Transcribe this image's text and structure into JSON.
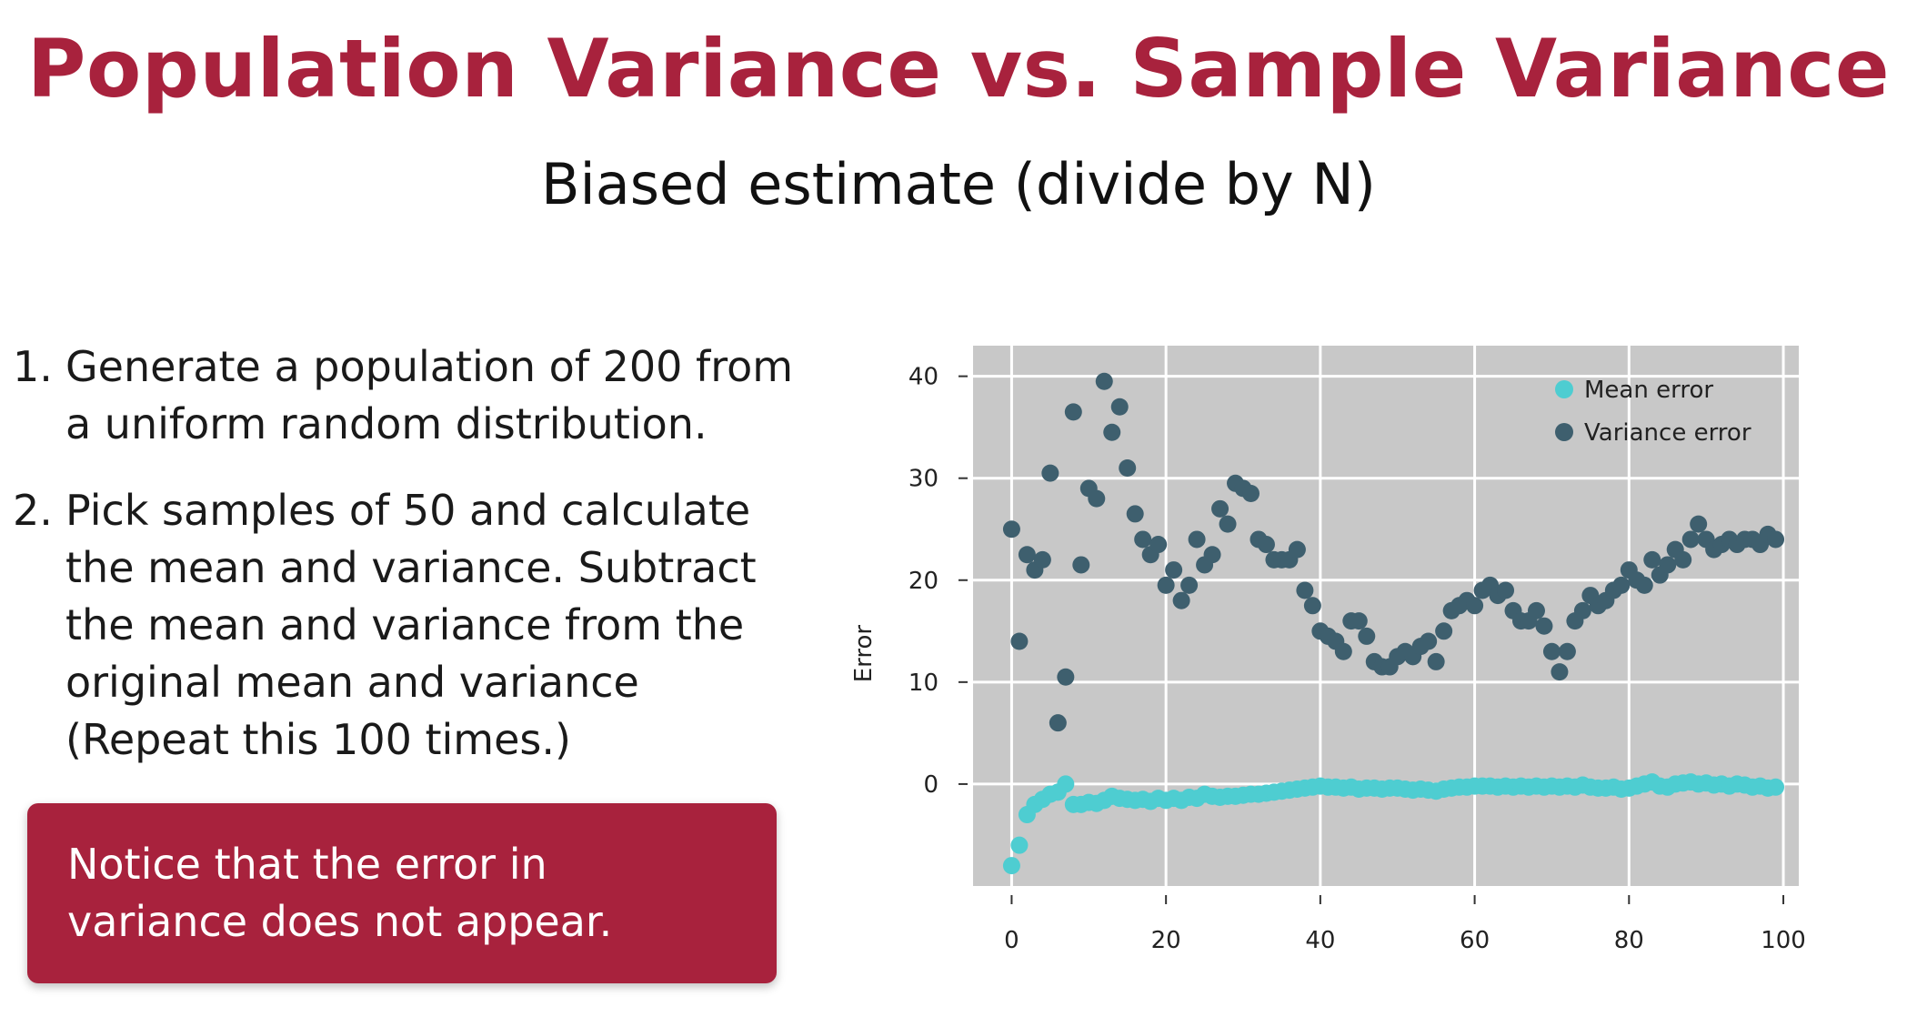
{
  "slide": {
    "title": "Population Variance vs. Sample Variance",
    "subtitle": "Biased estimate (divide by N)",
    "steps": [
      {
        "num": "1.",
        "text": "Generate a population of 200 from a uniform random distribution."
      },
      {
        "num": "2.",
        "text": "Pick samples of 50 and calculate the mean and variance. Subtract the mean and variance from the original mean and variance (Repeat this 100 times.)"
      }
    ],
    "note": "Notice that the error in variance does not appear."
  },
  "colors": {
    "accent": "#a8223d",
    "plot_bg": "#c8c8c8",
    "grid": "#ffffff",
    "mean_error": "#4ecdd1",
    "variance_error": "#3e5f6e"
  },
  "chart_data": {
    "type": "scatter",
    "xlabel": "",
    "ylabel": "Error",
    "xlim": [
      -5,
      102
    ],
    "ylim": [
      -10,
      43
    ],
    "x_ticks": [
      0,
      20,
      40,
      60,
      80,
      100
    ],
    "y_ticks": [
      0,
      10,
      20,
      30,
      40
    ],
    "grid": true,
    "legend": "top-right",
    "series": [
      {
        "name": "Mean error",
        "color": "#4ecdd1",
        "x": [
          0,
          1,
          2,
          3,
          4,
          5,
          6,
          7,
          8,
          9,
          10,
          11,
          12,
          13,
          14,
          15,
          16,
          17,
          18,
          19,
          20,
          21,
          22,
          23,
          24,
          25,
          26,
          27,
          28,
          29,
          30,
          31,
          32,
          33,
          34,
          35,
          36,
          37,
          38,
          39,
          40,
          41,
          42,
          43,
          44,
          45,
          46,
          47,
          48,
          49,
          50,
          51,
          52,
          53,
          54,
          55,
          56,
          57,
          58,
          59,
          60,
          61,
          62,
          63,
          64,
          65,
          66,
          67,
          68,
          69,
          70,
          71,
          72,
          73,
          74,
          75,
          76,
          77,
          78,
          79,
          80,
          81,
          82,
          83,
          84,
          85,
          86,
          87,
          88,
          89,
          90,
          91,
          92,
          93,
          94,
          95,
          96,
          97,
          98,
          99
        ],
        "y": [
          -8,
          -6,
          -3,
          -2,
          -1.5,
          -1,
          -0.8,
          0,
          -2,
          -2,
          -1.8,
          -1.9,
          -1.6,
          -1.2,
          -1.4,
          -1.5,
          -1.6,
          -1.5,
          -1.7,
          -1.4,
          -1.6,
          -1.4,
          -1.6,
          -1.3,
          -1.4,
          -1,
          -1.2,
          -1.3,
          -1.2,
          -1.2,
          -1.1,
          -1,
          -1,
          -0.9,
          -0.8,
          -0.7,
          -0.6,
          -0.5,
          -0.4,
          -0.3,
          -0.2,
          -0.3,
          -0.3,
          -0.4,
          -0.3,
          -0.5,
          -0.4,
          -0.4,
          -0.5,
          -0.4,
          -0.4,
          -0.5,
          -0.6,
          -0.5,
          -0.6,
          -0.7,
          -0.5,
          -0.4,
          -0.3,
          -0.3,
          -0.2,
          -0.2,
          -0.2,
          -0.3,
          -0.2,
          -0.3,
          -0.2,
          -0.3,
          -0.2,
          -0.3,
          -0.2,
          -0.3,
          -0.2,
          -0.3,
          -0.1,
          -0.3,
          -0.4,
          -0.4,
          -0.3,
          -0.5,
          -0.4,
          -0.2,
          0,
          0.2,
          -0.2,
          -0.3,
          0,
          0.1,
          0.2,
          0,
          0.1,
          -0.1,
          0,
          -0.2,
          0,
          -0.1,
          -0.3,
          -0.2,
          -0.4,
          -0.3
        ]
      },
      {
        "name": "Variance error",
        "color": "#3e5f6e",
        "x": [
          0,
          1,
          2,
          3,
          4,
          5,
          6,
          7,
          8,
          9,
          10,
          11,
          12,
          13,
          14,
          15,
          16,
          17,
          18,
          19,
          20,
          21,
          22,
          23,
          24,
          25,
          26,
          27,
          28,
          29,
          30,
          31,
          32,
          33,
          34,
          35,
          36,
          37,
          38,
          39,
          40,
          41,
          42,
          43,
          44,
          45,
          46,
          47,
          48,
          49,
          50,
          51,
          52,
          53,
          54,
          55,
          56,
          57,
          58,
          59,
          60,
          61,
          62,
          63,
          64,
          65,
          66,
          67,
          68,
          69,
          70,
          71,
          72,
          73,
          74,
          75,
          76,
          77,
          78,
          79,
          80,
          81,
          82,
          83,
          84,
          85,
          86,
          87,
          88,
          89,
          90,
          91,
          92,
          93,
          94,
          95,
          96,
          97,
          98,
          99
        ],
        "y": [
          25,
          14,
          22.5,
          21,
          22,
          30.5,
          6,
          10.5,
          36.5,
          21.5,
          29,
          28,
          39.5,
          34.5,
          37,
          31,
          26.5,
          24,
          22.5,
          23.5,
          19.5,
          21,
          18,
          19.5,
          24,
          21.5,
          22.5,
          27,
          25.5,
          29.5,
          29,
          28.5,
          24,
          23.5,
          22,
          22,
          22,
          23,
          19,
          17.5,
          15,
          14.5,
          14,
          13,
          16,
          16,
          14.5,
          12,
          11.5,
          11.5,
          12.5,
          13,
          12.5,
          13.5,
          14,
          12,
          15,
          17,
          17.5,
          18,
          17.5,
          19,
          19.5,
          18.5,
          19,
          17,
          16,
          16,
          17,
          15.5,
          13,
          11,
          13,
          16,
          17,
          18.5,
          17.5,
          18,
          19,
          19.5,
          21,
          20,
          19.5,
          22,
          20.5,
          21.5,
          23,
          22,
          24,
          25.5,
          24,
          23,
          23.5,
          24,
          23.5,
          24,
          24,
          23.5,
          24.5,
          24
        ]
      }
    ]
  }
}
